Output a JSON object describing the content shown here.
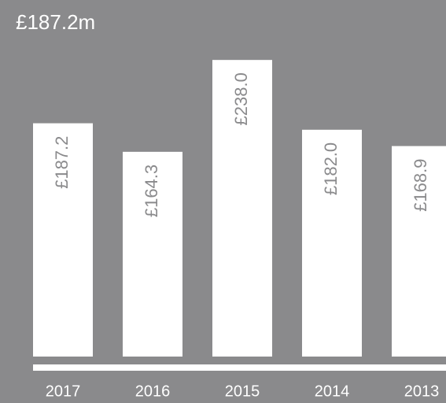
{
  "chart_data": {
    "type": "bar",
    "title": "£187.2m",
    "categories": [
      "2017",
      "2016",
      "2015",
      "2014",
      "2013"
    ],
    "values": [
      187.2,
      164.3,
      238.0,
      182.0,
      168.9
    ],
    "value_labels": [
      "£187.2",
      "£164.3",
      "£238.0",
      "£182.0",
      "£168.9"
    ],
    "color": "#ffffff",
    "ylim": [
      0,
      240
    ]
  }
}
